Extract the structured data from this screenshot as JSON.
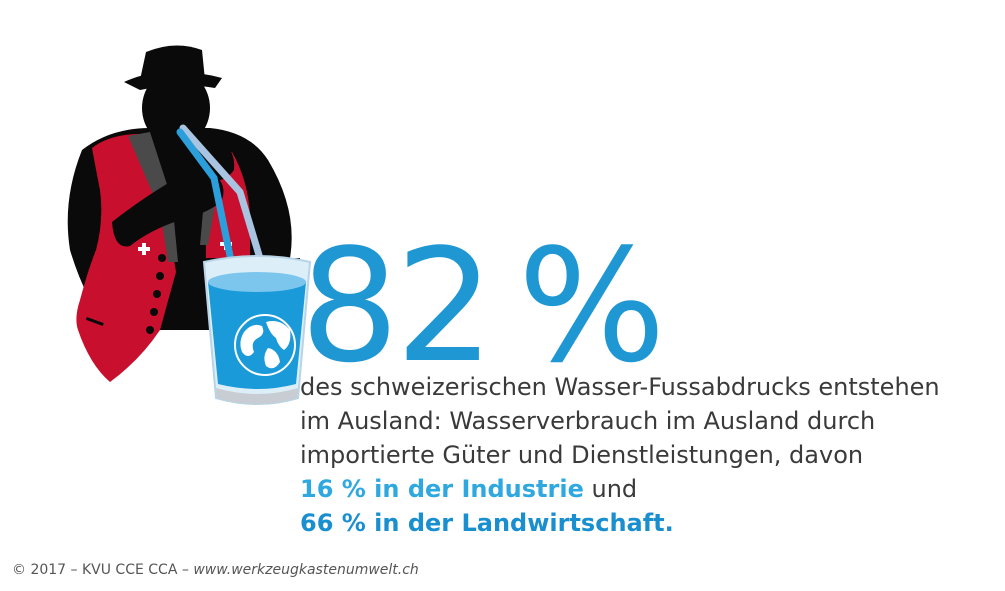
{
  "headline": {
    "value": "82",
    "unit": "%"
  },
  "description": {
    "line1": "des schweizerischen Wasser-Fussabdrucks entstehen",
    "line2": "im Ausland: Wasserverbrauch im Ausland durch",
    "line3": "importierte Güter und Dienstleistungen, davon",
    "industry_highlight": "16 % in der Industrie",
    "industry_suffix": " und",
    "agriculture_highlight": "66 % in der Landwirtschaft."
  },
  "footer": {
    "copyright": "© 2017 – KVU CCE CCA – ",
    "url": "www.werkzeugkastenumwelt.ch"
  },
  "colors": {
    "accent_blue": "#1f97d3",
    "highlight_light": "#2fa8e0",
    "vest_red": "#c8102e",
    "silhouette": "#0a0a0a"
  },
  "icons": [
    "man-silhouette-icon",
    "water-glass-icon",
    "globe-icon",
    "straw-icon",
    "swiss-cross-icon"
  ]
}
